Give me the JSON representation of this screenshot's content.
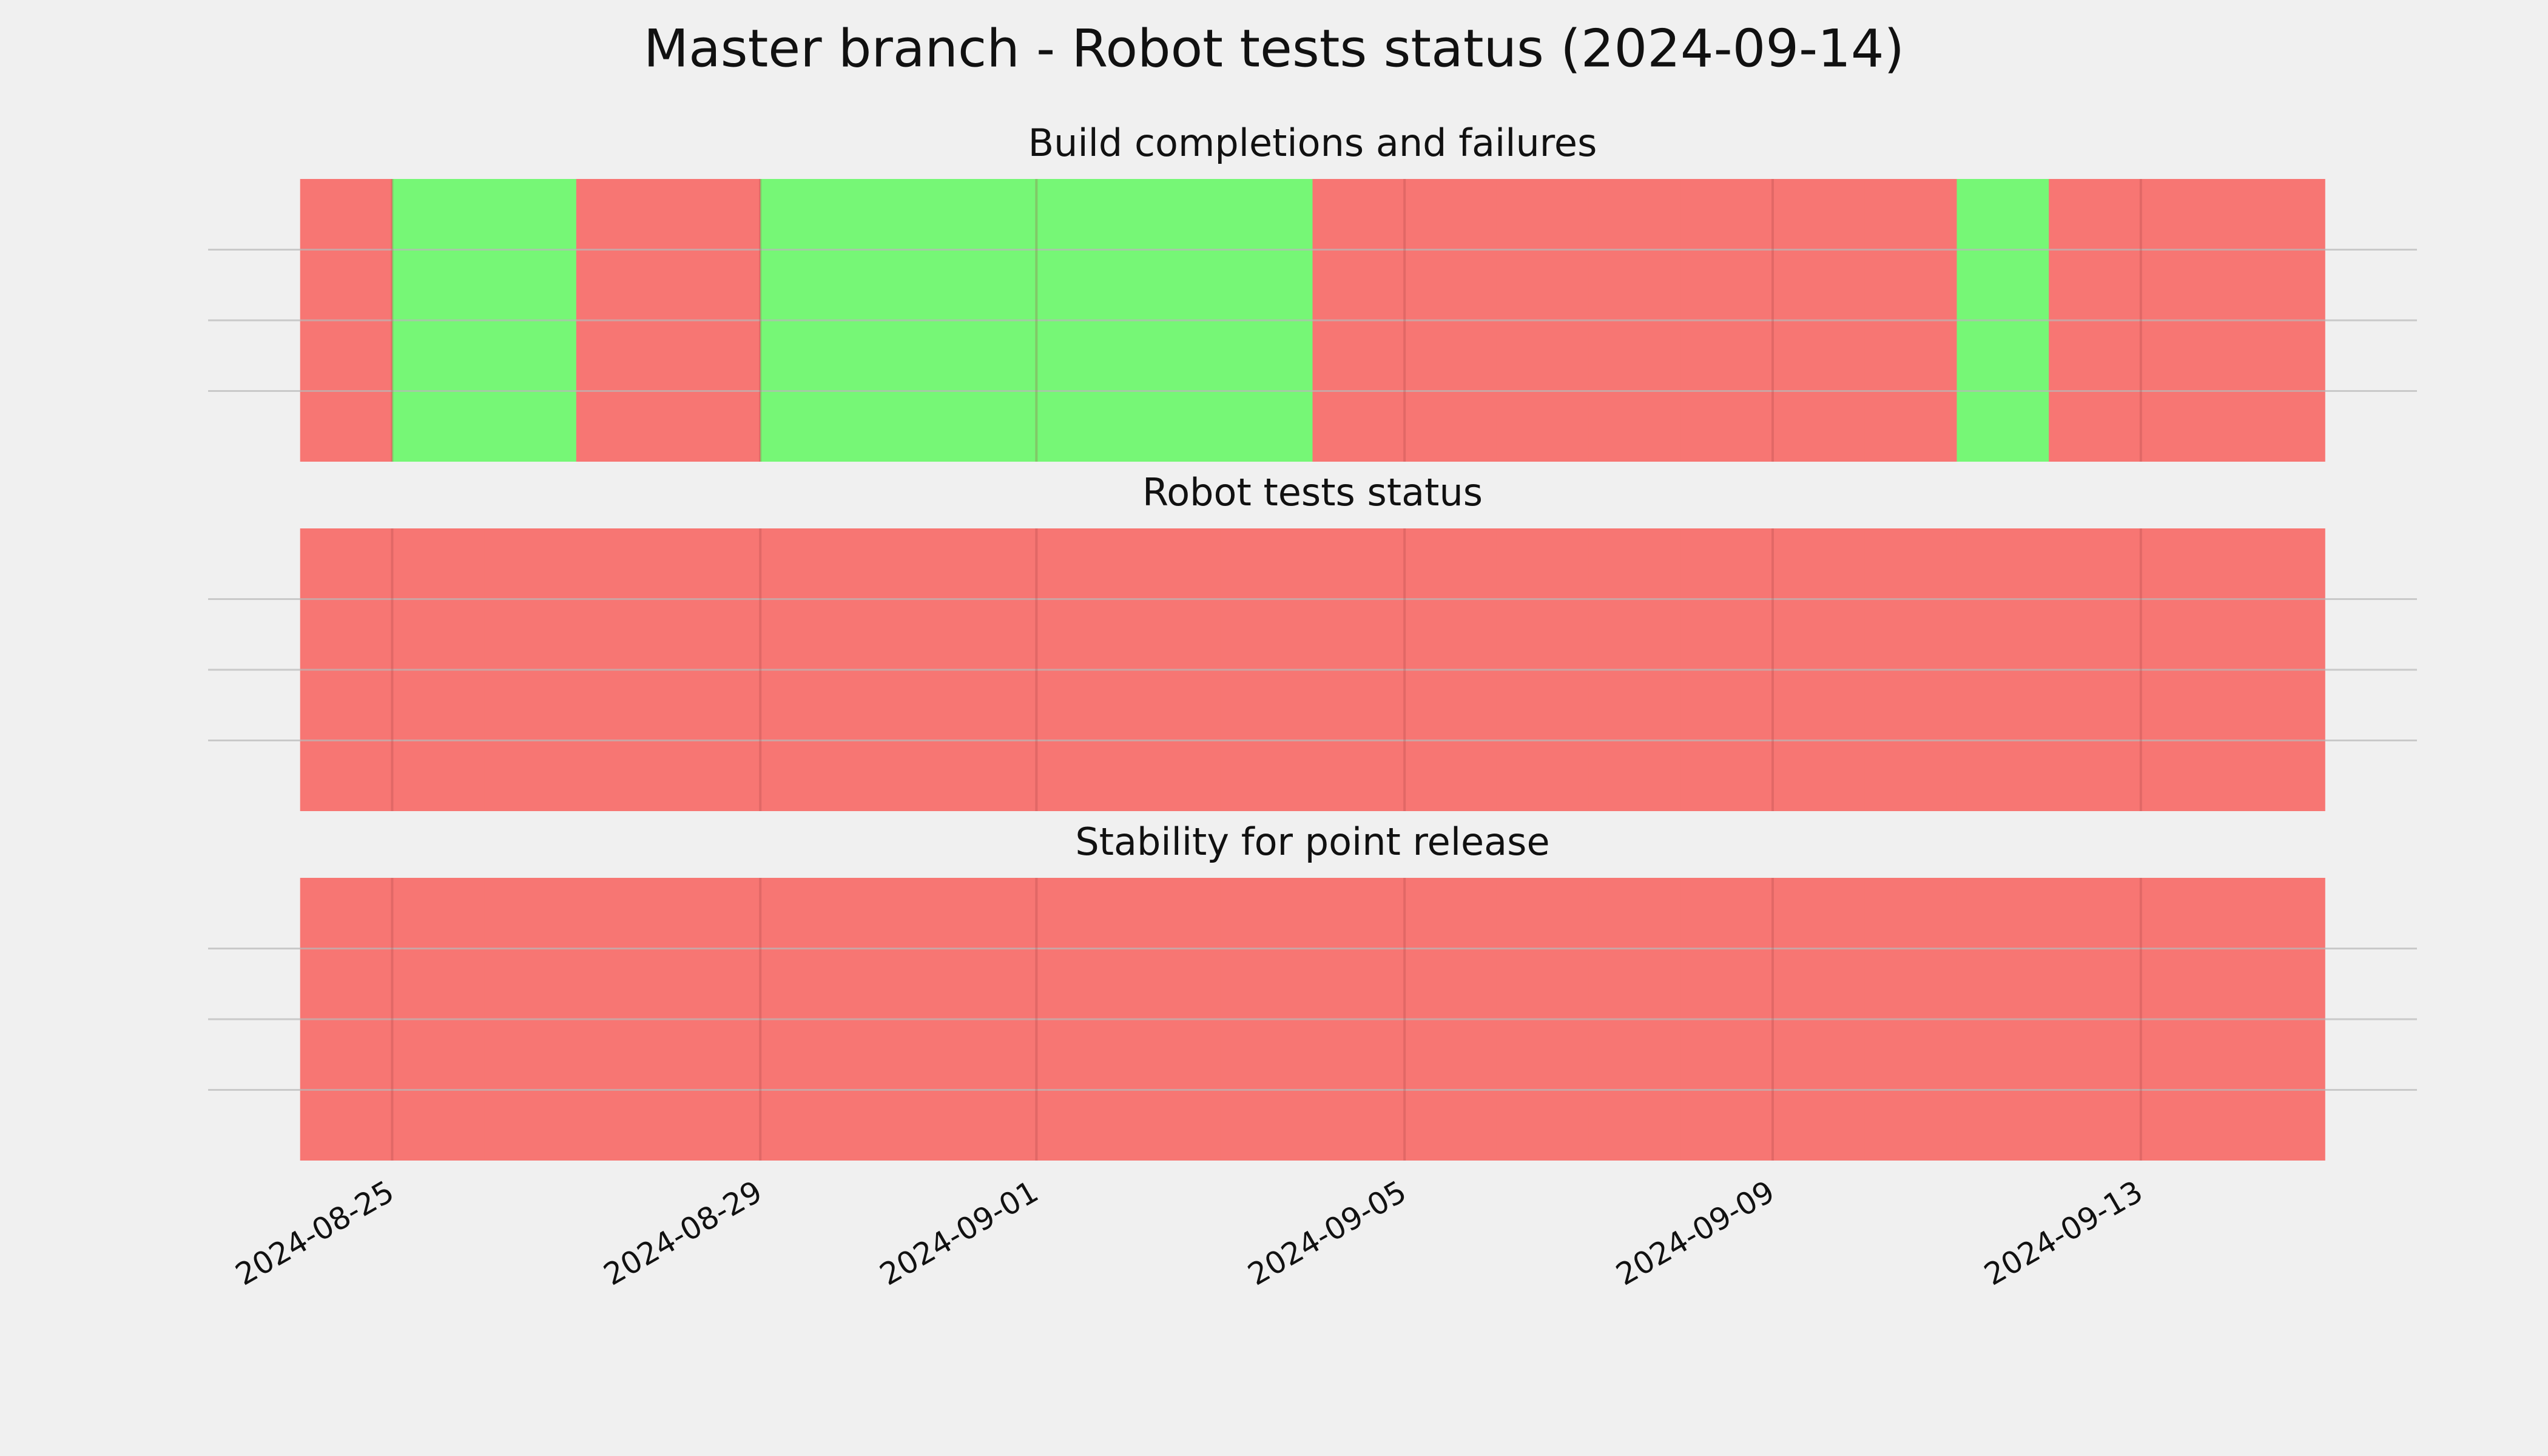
{
  "title": "Master branch - Robot tests status (2024-09-14)",
  "chart_data": [
    {
      "type": "timeline",
      "title": "Build completions and failures",
      "x": [
        "2024-08-24",
        "2024-08-25",
        "2024-08-26",
        "2024-08-27",
        "2024-08-28",
        "2024-08-29",
        "2024-08-30",
        "2024-08-31",
        "2024-09-01",
        "2024-09-02",
        "2024-09-03",
        "2024-09-04",
        "2024-09-05",
        "2024-09-06",
        "2024-09-07",
        "2024-09-08",
        "2024-09-09",
        "2024-09-10",
        "2024-09-11",
        "2024-09-12",
        "2024-09-13",
        "2024-09-14"
      ],
      "values": [
        0,
        1,
        1,
        0,
        0,
        1,
        1,
        1,
        1,
        1,
        1,
        0,
        0,
        0,
        0,
        0,
        0,
        0,
        1,
        0,
        0,
        0
      ],
      "colors": [
        "#f77673",
        "#76f776"
      ],
      "xlim": [
        "2024-08-23",
        "2024-09-16"
      ],
      "xticks": [
        "2024-08-25",
        "2024-08-29",
        "2024-09-01",
        "2024-09-05",
        "2024-09-09",
        "2024-09-13"
      ],
      "ylim": [
        0,
        1
      ],
      "yticks": [
        0.25,
        0.5,
        0.75
      ],
      "grid": true
    },
    {
      "type": "timeline",
      "title": "Robot tests status",
      "x": [
        "2024-08-24",
        "2024-08-25",
        "2024-08-26",
        "2024-08-27",
        "2024-08-28",
        "2024-08-29",
        "2024-08-30",
        "2024-08-31",
        "2024-09-01",
        "2024-09-02",
        "2024-09-03",
        "2024-09-04",
        "2024-09-05",
        "2024-09-06",
        "2024-09-07",
        "2024-09-08",
        "2024-09-09",
        "2024-09-10",
        "2024-09-11",
        "2024-09-12",
        "2024-09-13",
        "2024-09-14"
      ],
      "values": [
        0,
        0,
        0,
        0,
        0,
        0,
        0,
        0,
        0,
        0,
        0,
        0,
        0,
        0,
        0,
        0,
        0,
        0,
        0,
        0,
        0,
        0
      ],
      "colors": [
        "#f77673",
        "#76f776"
      ],
      "xlim": [
        "2024-08-23",
        "2024-09-16"
      ],
      "xticks": [
        "2024-08-25",
        "2024-08-29",
        "2024-09-01",
        "2024-09-05",
        "2024-09-09",
        "2024-09-13"
      ],
      "ylim": [
        0,
        1
      ],
      "yticks": [
        0.25,
        0.5,
        0.75
      ],
      "grid": true
    },
    {
      "type": "timeline",
      "title": "Stability for point release",
      "x": [
        "2024-08-24",
        "2024-08-25",
        "2024-08-26",
        "2024-08-27",
        "2024-08-28",
        "2024-08-29",
        "2024-08-30",
        "2024-08-31",
        "2024-09-01",
        "2024-09-02",
        "2024-09-03",
        "2024-09-04",
        "2024-09-05",
        "2024-09-06",
        "2024-09-07",
        "2024-09-08",
        "2024-09-09",
        "2024-09-10",
        "2024-09-11",
        "2024-09-12",
        "2024-09-13",
        "2024-09-14"
      ],
      "values": [
        0,
        0,
        0,
        0,
        0,
        0,
        0,
        0,
        0,
        0,
        0,
        0,
        0,
        0,
        0,
        0,
        0,
        0,
        0,
        0,
        0,
        0
      ],
      "colors": [
        "#f77673",
        "#76f776"
      ],
      "xlim": [
        "2024-08-23",
        "2024-09-16"
      ],
      "xticks": [
        "2024-08-25",
        "2024-08-29",
        "2024-09-01",
        "2024-09-05",
        "2024-09-09",
        "2024-09-13"
      ],
      "ylim": [
        0,
        1
      ],
      "yticks": [
        0.25,
        0.5,
        0.75
      ],
      "grid": true
    }
  ]
}
